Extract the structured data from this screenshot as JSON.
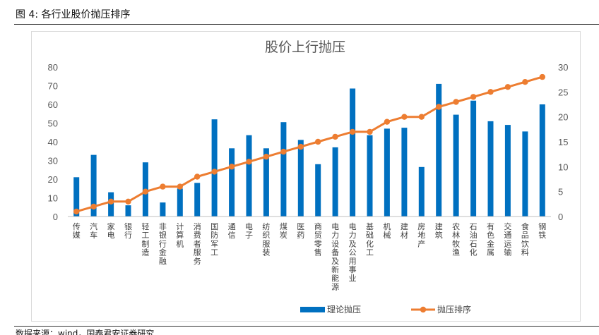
{
  "figure": {
    "title": "图 4:  各行业股价抛压排序",
    "source": "数据来源：wind，国泰君安证券研究"
  },
  "chart_data": {
    "type": "bar",
    "title": "股价上行抛压",
    "categories": [
      "传媒",
      "汽车",
      "家电",
      "银行",
      "轻工制造",
      "非银行金融",
      "计算机",
      "消费者服务",
      "国防军工",
      "通信",
      "电子",
      "纺织服装",
      "煤炭",
      "医药",
      "商贸零售",
      "电力设备及新能源",
      "电力及公用事业",
      "基础化工",
      "机械",
      "建材",
      "房地产",
      "建筑",
      "农林牧渔",
      "石油石化",
      "有色金属",
      "交通运输",
      "食品饮料",
      "钢铁"
    ],
    "series": [
      {
        "name": "理论抛压",
        "type": "bar",
        "axis": "left",
        "color": "#0070c0",
        "values": [
          21,
          33,
          13,
          6,
          29,
          7.5,
          15,
          18,
          52,
          36.5,
          43.5,
          36.5,
          50.5,
          41,
          28,
          37,
          68.5,
          43.5,
          47,
          47.5,
          26.5,
          71,
          54.5,
          62,
          51,
          49,
          45.5,
          60
        ]
      },
      {
        "name": "抛压排序",
        "type": "line",
        "axis": "right",
        "color": "#ed7d31",
        "values": [
          1,
          2,
          3,
          3,
          5,
          6,
          6,
          8,
          9,
          10,
          11,
          12,
          13,
          14,
          15,
          16,
          17,
          17,
          19,
          20,
          20,
          22,
          23,
          24,
          25,
          26,
          27,
          28
        ]
      }
    ],
    "y_left": {
      "min": 0,
      "max": 80,
      "ticks": [
        0,
        10,
        20,
        30,
        40,
        50,
        60,
        70,
        80
      ]
    },
    "y_right": {
      "min": 0,
      "max": 30,
      "ticks": [
        0,
        5,
        10,
        15,
        20,
        25,
        30
      ]
    },
    "grid": false,
    "legend_position": "bottom"
  }
}
